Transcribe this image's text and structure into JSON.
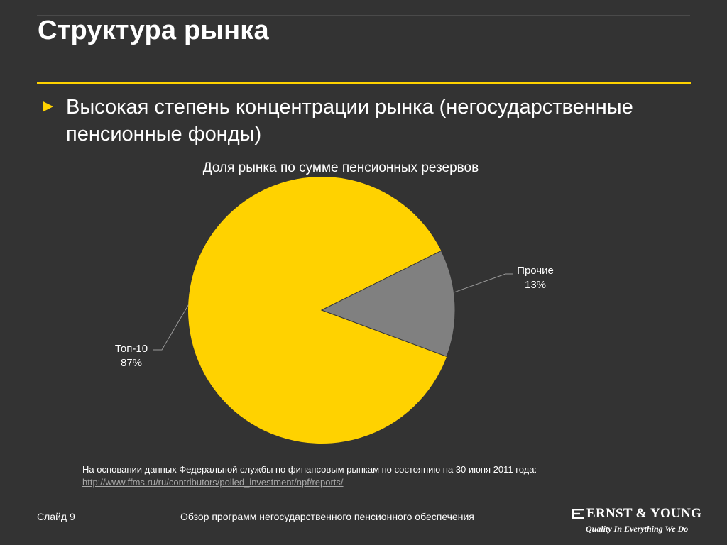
{
  "slide": {
    "title": "Структура рынка",
    "bullet_marker": "►",
    "bullet_text": "Высокая степень концентрации рынка (негосударственные пенсионные фонды)"
  },
  "chart_data": {
    "type": "pie",
    "title": "Доля рынка по сумме пенсионных резервов",
    "slices": [
      {
        "name": "Топ-10",
        "value": 87,
        "label": "87%",
        "color": "#ffd200"
      },
      {
        "name": "Прочие",
        "value": 13,
        "label": "13%",
        "color": "#808080"
      }
    ]
  },
  "note": {
    "text": "На основании данных  Федеральной службы по финансовым рынкам по состоянию на 30 июня 2011 года:",
    "link": "http://www.ffms.ru/ru/contributors/polled_investment/npf/reports/"
  },
  "footer": {
    "slide_label": "Слайд 9",
    "center_text": "Обзор программ негосударственного пенсионного обеспечения",
    "logo_text": "ERNST & YOUNG",
    "logo_tagline": "Quality In Everything We Do"
  },
  "colors": {
    "background": "#333333",
    "accent": "#ffd200",
    "other_slice": "#808080"
  }
}
